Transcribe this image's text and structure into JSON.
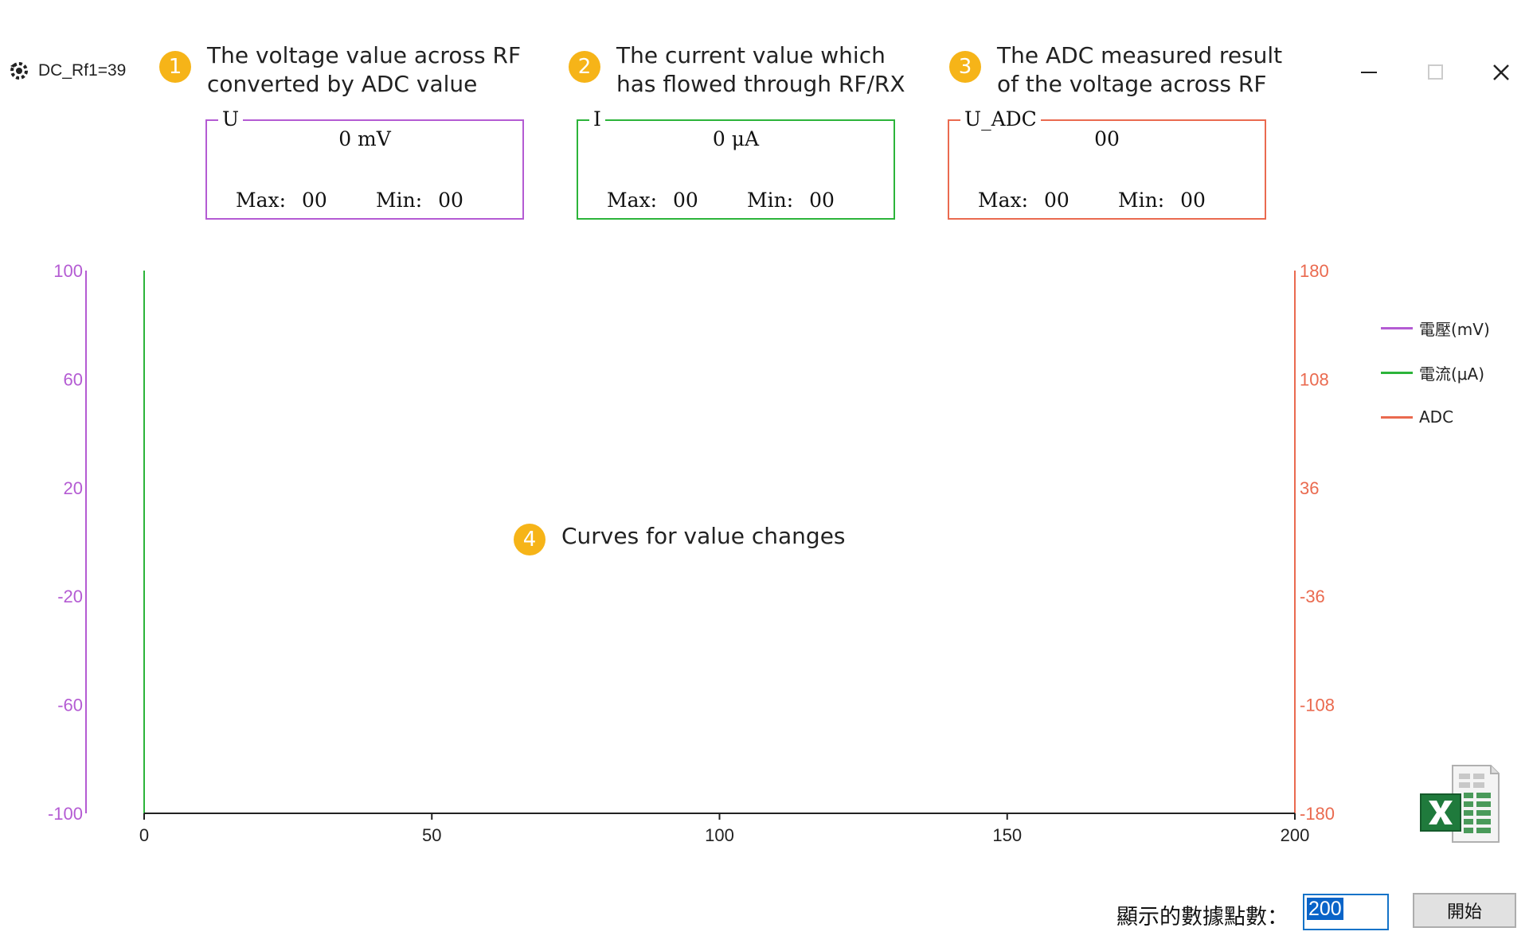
{
  "window": {
    "title": "DC_Rf1=39",
    "app_icon": "gear-icon",
    "controls": {
      "minimize_icon": "minimize-icon",
      "maximize_icon": "maximize-icon",
      "close_icon": "close-icon"
    }
  },
  "annotations": [
    {
      "number": "1",
      "lines": [
        "The voltage value across RF",
        "converted by ADC value"
      ]
    },
    {
      "number": "2",
      "lines": [
        "The current value which",
        "has flowed through RF/RX"
      ]
    },
    {
      "number": "3",
      "lines": [
        "The ADC measured result",
        "of the voltage across RF"
      ]
    },
    {
      "number": "4",
      "lines": [
        "Curves for value changes"
      ]
    }
  ],
  "groupboxes": {
    "u": {
      "legend": "U",
      "value": "0 mV",
      "max_label": "Max:",
      "max": "00",
      "min_label": "Min:",
      "min": "00",
      "color": "#b45bd3"
    },
    "i": {
      "legend": "I",
      "value": "0 μA",
      "max_label": "Max:",
      "max": "00",
      "min_label": "Min:",
      "min": "00",
      "color": "#2cb43a"
    },
    "adc": {
      "legend": "U_ADC",
      "value": "00",
      "max_label": "Max:",
      "max": "00",
      "min_label": "Min:",
      "min": "00",
      "color": "#ea6a4f"
    }
  },
  "chart_data": {
    "type": "line",
    "x_ticks": [
      "0",
      "50",
      "100",
      "150",
      "200"
    ],
    "xlim": [
      0,
      200
    ],
    "y_left_ticks": [
      "100",
      "60",
      "20",
      "-20",
      "-60",
      "-100"
    ],
    "ylim_left": [
      -100,
      100
    ],
    "y_right_ticks": [
      "180",
      "108",
      "36",
      "-36",
      "-108",
      "-180"
    ],
    "ylim_right": [
      -180,
      180
    ],
    "grid": false,
    "legend_position": "right",
    "series": [
      {
        "name": "電壓(mV)",
        "color": "#b45bd3",
        "values": []
      },
      {
        "name": "電流(μA)",
        "color": "#2cb43a",
        "values": []
      },
      {
        "name": "ADC",
        "color": "#ea6a4f",
        "values": []
      }
    ]
  },
  "legend": [
    {
      "label": "電壓(mV)",
      "color": "#b45bd3"
    },
    {
      "label": "電流(μA)",
      "color": "#2cb43a"
    },
    {
      "label": "ADC",
      "color": "#ea6a4f"
    }
  ],
  "export": {
    "icon": "excel-icon"
  },
  "controls": {
    "points_label": "顯示的數據點數：",
    "points_value": "200",
    "start_label": "開始"
  }
}
